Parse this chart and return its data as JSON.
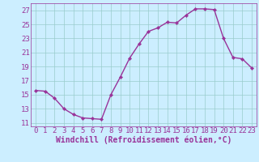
{
  "x": [
    0,
    1,
    2,
    3,
    4,
    5,
    6,
    7,
    8,
    9,
    10,
    11,
    12,
    13,
    14,
    15,
    16,
    17,
    18,
    19,
    20,
    21,
    22,
    23
  ],
  "y": [
    15.6,
    15.5,
    14.5,
    13.0,
    12.2,
    11.7,
    11.6,
    11.5,
    15.0,
    17.5,
    20.2,
    22.2,
    24.0,
    24.5,
    25.3,
    25.2,
    26.3,
    27.2,
    27.2,
    27.1,
    23.0,
    20.3,
    20.1,
    18.8
  ],
  "line_color": "#993399",
  "marker": "D",
  "marker_size": 2.2,
  "bg_color": "#cceeff",
  "grid_color": "#99cccc",
  "xlabel": "Windchill (Refroidissement éolien,°C)",
  "xlim": [
    -0.5,
    23.5
  ],
  "ylim": [
    10.5,
    28.0
  ],
  "yticks": [
    11,
    13,
    15,
    17,
    19,
    21,
    23,
    25,
    27
  ],
  "xticks": [
    0,
    1,
    2,
    3,
    4,
    5,
    6,
    7,
    8,
    9,
    10,
    11,
    12,
    13,
    14,
    15,
    16,
    17,
    18,
    19,
    20,
    21,
    22,
    23
  ],
  "font_color": "#993399",
  "tick_fontsize": 6.5,
  "xlabel_fontsize": 7.0,
  "linewidth": 1.0
}
